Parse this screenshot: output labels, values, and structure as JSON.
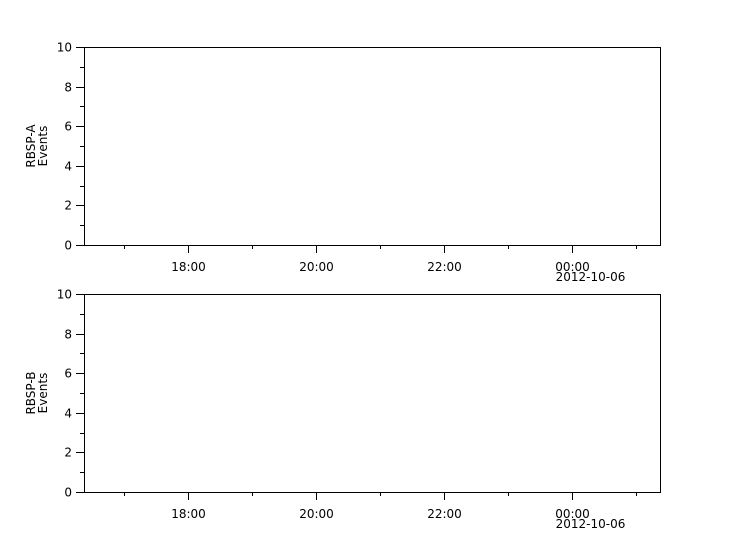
{
  "chart_data": [
    {
      "type": "line",
      "ylabel": [
        "RBSP-A",
        "Events"
      ],
      "ylim": [
        0,
        10
      ],
      "yticks": [
        "0",
        "2",
        "4",
        "6",
        "8",
        "10"
      ],
      "xlim": [
        "2012-10-05T16:22:30",
        "2012-10-06T01:22:30"
      ],
      "xticks": [
        "18:00",
        "20:00",
        "22:00",
        "00:00"
      ],
      "xdate_label": "2012-10-06",
      "series": [],
      "grid": false
    },
    {
      "type": "line",
      "ylabel": [
        "RBSP-B",
        "Events"
      ],
      "ylim": [
        0,
        10
      ],
      "yticks": [
        "0",
        "2",
        "4",
        "6",
        "8",
        "10"
      ],
      "xlim": [
        "2012-10-05T16:22:30",
        "2012-10-06T01:22:30"
      ],
      "xticks": [
        "18:00",
        "20:00",
        "22:00",
        "00:00"
      ],
      "xdate_label": "2012-10-06",
      "series": [],
      "grid": false
    }
  ],
  "colors": {
    "axis": "#000000",
    "background": "#ffffff"
  }
}
